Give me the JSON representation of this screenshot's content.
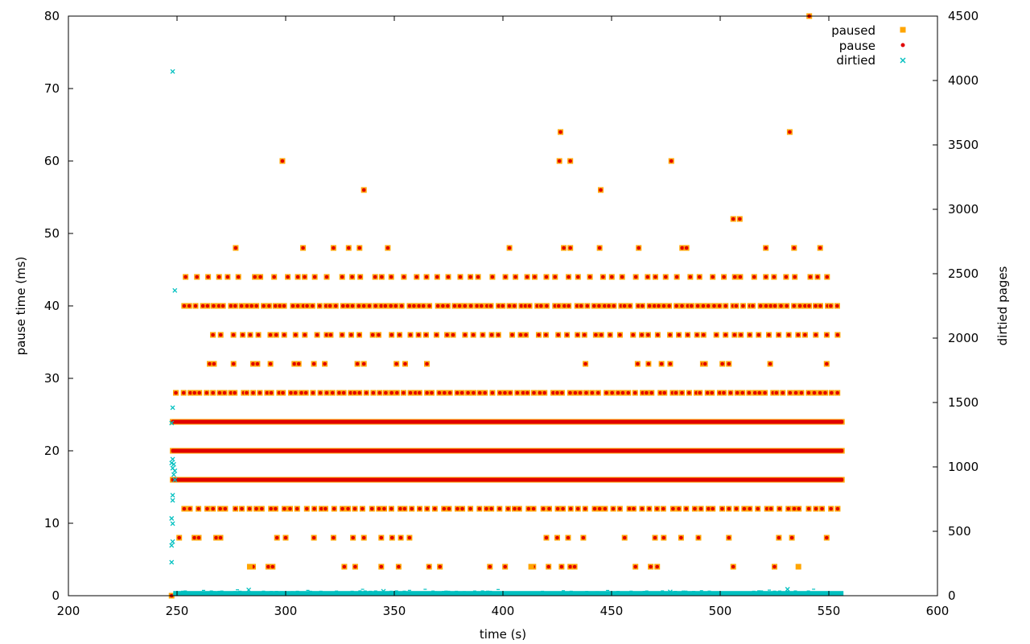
{
  "chart_data": {
    "type": "scatter",
    "xlabel": "time (s)",
    "ylabel": "pause time (ms)",
    "y2label": "dirtied pages",
    "xlim": [
      200,
      600
    ],
    "ylim": [
      0,
      80
    ],
    "y2lim": [
      0,
      4500
    ],
    "xticks": [
      200,
      250,
      300,
      350,
      400,
      450,
      500,
      550,
      600
    ],
    "yticks": [
      0,
      10,
      20,
      30,
      40,
      50,
      60,
      70,
      80
    ],
    "y2ticks": [
      0,
      500,
      1000,
      1500,
      2000,
      2500,
      3000,
      3500,
      4000,
      4500
    ],
    "legend_position": "top-right",
    "grid": false,
    "series": [
      {
        "name": "paused",
        "marker": "square",
        "color": "#ffa500",
        "axis": "left",
        "points": [
          [
            247.5,
            0
          ],
          [
            283.5,
            4
          ],
          [
            413,
            4
          ],
          [
            536,
            4
          ],
          [
            298.5,
            60
          ],
          [
            336,
            56
          ],
          [
            426.5,
            64
          ],
          [
            426,
            60
          ],
          [
            431,
            60
          ],
          [
            445,
            56
          ],
          [
            477.5,
            60
          ],
          [
            506,
            52
          ],
          [
            509,
            52
          ],
          [
            532,
            64
          ],
          [
            541,
            80
          ],
          [
            277,
            48
          ],
          [
            308,
            48
          ],
          [
            322,
            48
          ],
          [
            329,
            48
          ],
          [
            334,
            48
          ],
          [
            347,
            48
          ],
          [
            403,
            48
          ],
          [
            428,
            48
          ],
          [
            431,
            48
          ],
          [
            444.5,
            48
          ],
          [
            462.5,
            48
          ],
          [
            482.5,
            48
          ],
          [
            484.5,
            48
          ],
          [
            521,
            48
          ],
          [
            534,
            48
          ],
          [
            546,
            48
          ]
        ]
      },
      {
        "name": "pause",
        "marker": "dot",
        "color": "#e00000",
        "axis": "left",
        "bands": [
          {
            "y": 16,
            "x_start": 248,
            "x_end": 556
          },
          {
            "y": 20,
            "x_start": 248,
            "x_end": 556
          },
          {
            "y": 24,
            "x_start": 248,
            "x_end": 556
          }
        ],
        "sparse_rows": [
          {
            "y": 4,
            "x": [
              285,
              292,
              294,
              327,
              332,
              344,
              352,
              366,
              371,
              394,
              401,
              414,
              421,
              427,
              431,
              433,
              461,
              468,
              471,
              506,
              525
            ]
          },
          {
            "y": 8,
            "x": [
              251,
              258,
              260,
              268,
              270,
              296,
              300,
              313,
              322,
              331,
              336,
              344,
              349,
              353,
              357,
              420,
              425,
              430,
              437,
              456,
              470,
              474,
              482,
              490,
              504,
              527,
              533,
              549
            ]
          },
          {
            "y": 12,
            "x_start": 252,
            "x_end": 556,
            "count": 92
          },
          {
            "y": 28,
            "x_start": 249,
            "x_end": 556,
            "count": 112
          },
          {
            "y": 32,
            "x": [
              265,
              267,
              276,
              285,
              287,
              293,
              304,
              306,
              313,
              318,
              333,
              336,
              351,
              355,
              365,
              438,
              462,
              467,
              473,
              477,
              492,
              493,
              501,
              504,
              523,
              549
            ]
          },
          {
            "y": 36,
            "x_start": 265,
            "x_end": 556,
            "count": 68
          },
          {
            "y": 40,
            "x_start": 253,
            "x_end": 556,
            "count": 118
          },
          {
            "y": 44,
            "x_start": 253,
            "x_end": 554,
            "count": 60
          }
        ]
      },
      {
        "name": "dirtied",
        "marker": "x",
        "color": "#00c0c0",
        "axis": "right",
        "early_points": [
          [
            248,
            4070
          ],
          [
            249,
            2370
          ],
          [
            248,
            1460
          ],
          [
            247.5,
            1340
          ],
          [
            248,
            1060
          ],
          [
            247.5,
            1030
          ],
          [
            248.5,
            1020
          ],
          [
            248,
            990
          ],
          [
            249,
            970
          ],
          [
            248.5,
            940
          ],
          [
            249,
            900
          ],
          [
            248,
            780
          ],
          [
            248,
            740
          ],
          [
            247.5,
            600
          ],
          [
            248,
            560
          ],
          [
            248,
            420
          ],
          [
            247.5,
            390
          ],
          [
            247.5,
            260
          ]
        ],
        "baseline": {
          "x_start": 249,
          "x_end": 556,
          "typical_max": 30,
          "occasional_max": 50
        },
        "spikes": [
          [
            283,
            45
          ],
          [
            345,
            35
          ],
          [
            477,
            30
          ],
          [
            531,
            50
          ]
        ]
      }
    ]
  }
}
